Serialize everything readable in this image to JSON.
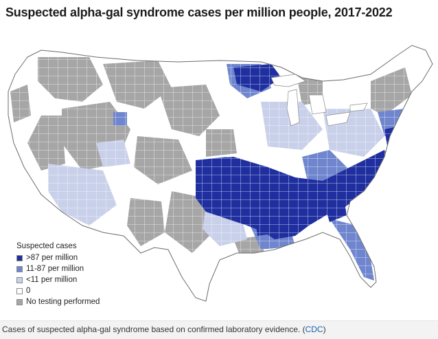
{
  "figure": {
    "title": "Suspected alpha-gal syndrome cases per million people, 2017-2022"
  },
  "legend": {
    "title": "Suspected cases",
    "items": [
      {
        "label": ">87 per million",
        "color": "#1f2fa0"
      },
      {
        "label": "11-87 per million",
        "color": "#6f86cf"
      },
      {
        "label": "<11 per million",
        "color": "#c9d0ea"
      },
      {
        "label": "0",
        "color": "#ffffff"
      },
      {
        "label": "No testing performed",
        "color": "#a6a6a6"
      }
    ]
  },
  "caption": {
    "text": "Cases of suspected alpha-gal syndrome based on confirmed laboratory evidence. (",
    "link_label": "CDC",
    "closing": ")"
  },
  "colors": {
    "high": "#1f2fa0",
    "mid": "#6f86cf",
    "low": "#c9d0ea",
    "zero": "#ffffff",
    "none": "#a6a6a6",
    "border": "#ffffff"
  }
}
